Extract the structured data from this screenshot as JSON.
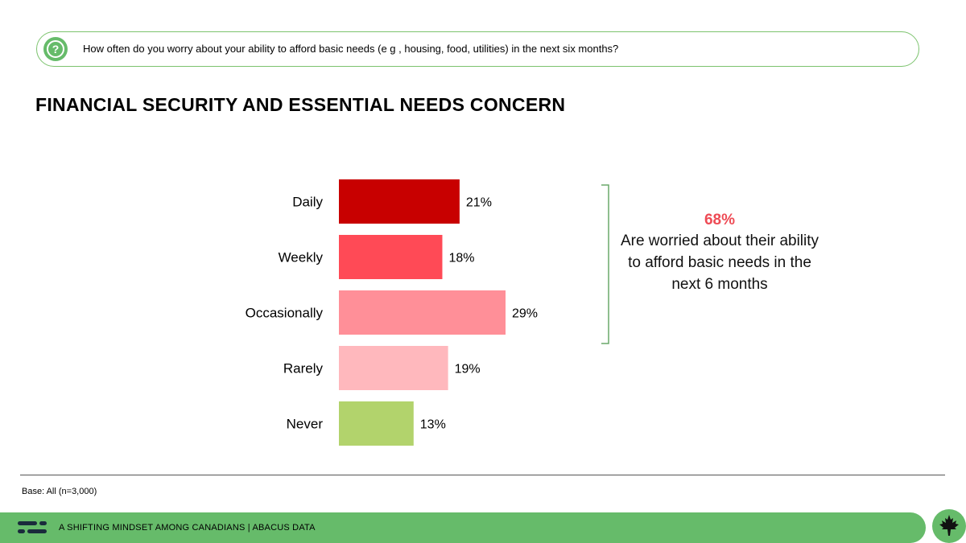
{
  "question": {
    "icon": "question-circle-icon",
    "text": "How often do you worry about your ability to afford basic needs (e g , housing, food, utilities) in the next six months?"
  },
  "title": "FINANCIAL SECURITY AND ESSENTIAL NEEDS CONCERN",
  "chart_data": {
    "type": "bar",
    "orientation": "horizontal",
    "categories": [
      "Daily",
      "Weekly",
      "Occasionally",
      "Rarely",
      "Never"
    ],
    "values": [
      21,
      18,
      29,
      19,
      13
    ],
    "value_labels": [
      "21%",
      "18%",
      "29%",
      "19%",
      "13%"
    ],
    "colors": [
      "#c80000",
      "#ff4a56",
      "#ff8f98",
      "#ffb8bd",
      "#b2d36c"
    ],
    "xlim": [
      0,
      29
    ],
    "grid": false,
    "legend": "none"
  },
  "callout": {
    "percent": "68%",
    "text": "Are worried about their ability to afford basic needs in the next 6 months"
  },
  "base_note": "Base: All (n=3,000)",
  "footer": {
    "text": "A SHIFTING MINDSET AMONG CANADIANS  |  ABACUS DATA",
    "logo_icon": "abacus-logo-icon",
    "badge_icon": "maple-leaf-icon",
    "accent_color": "#66bb6a"
  }
}
